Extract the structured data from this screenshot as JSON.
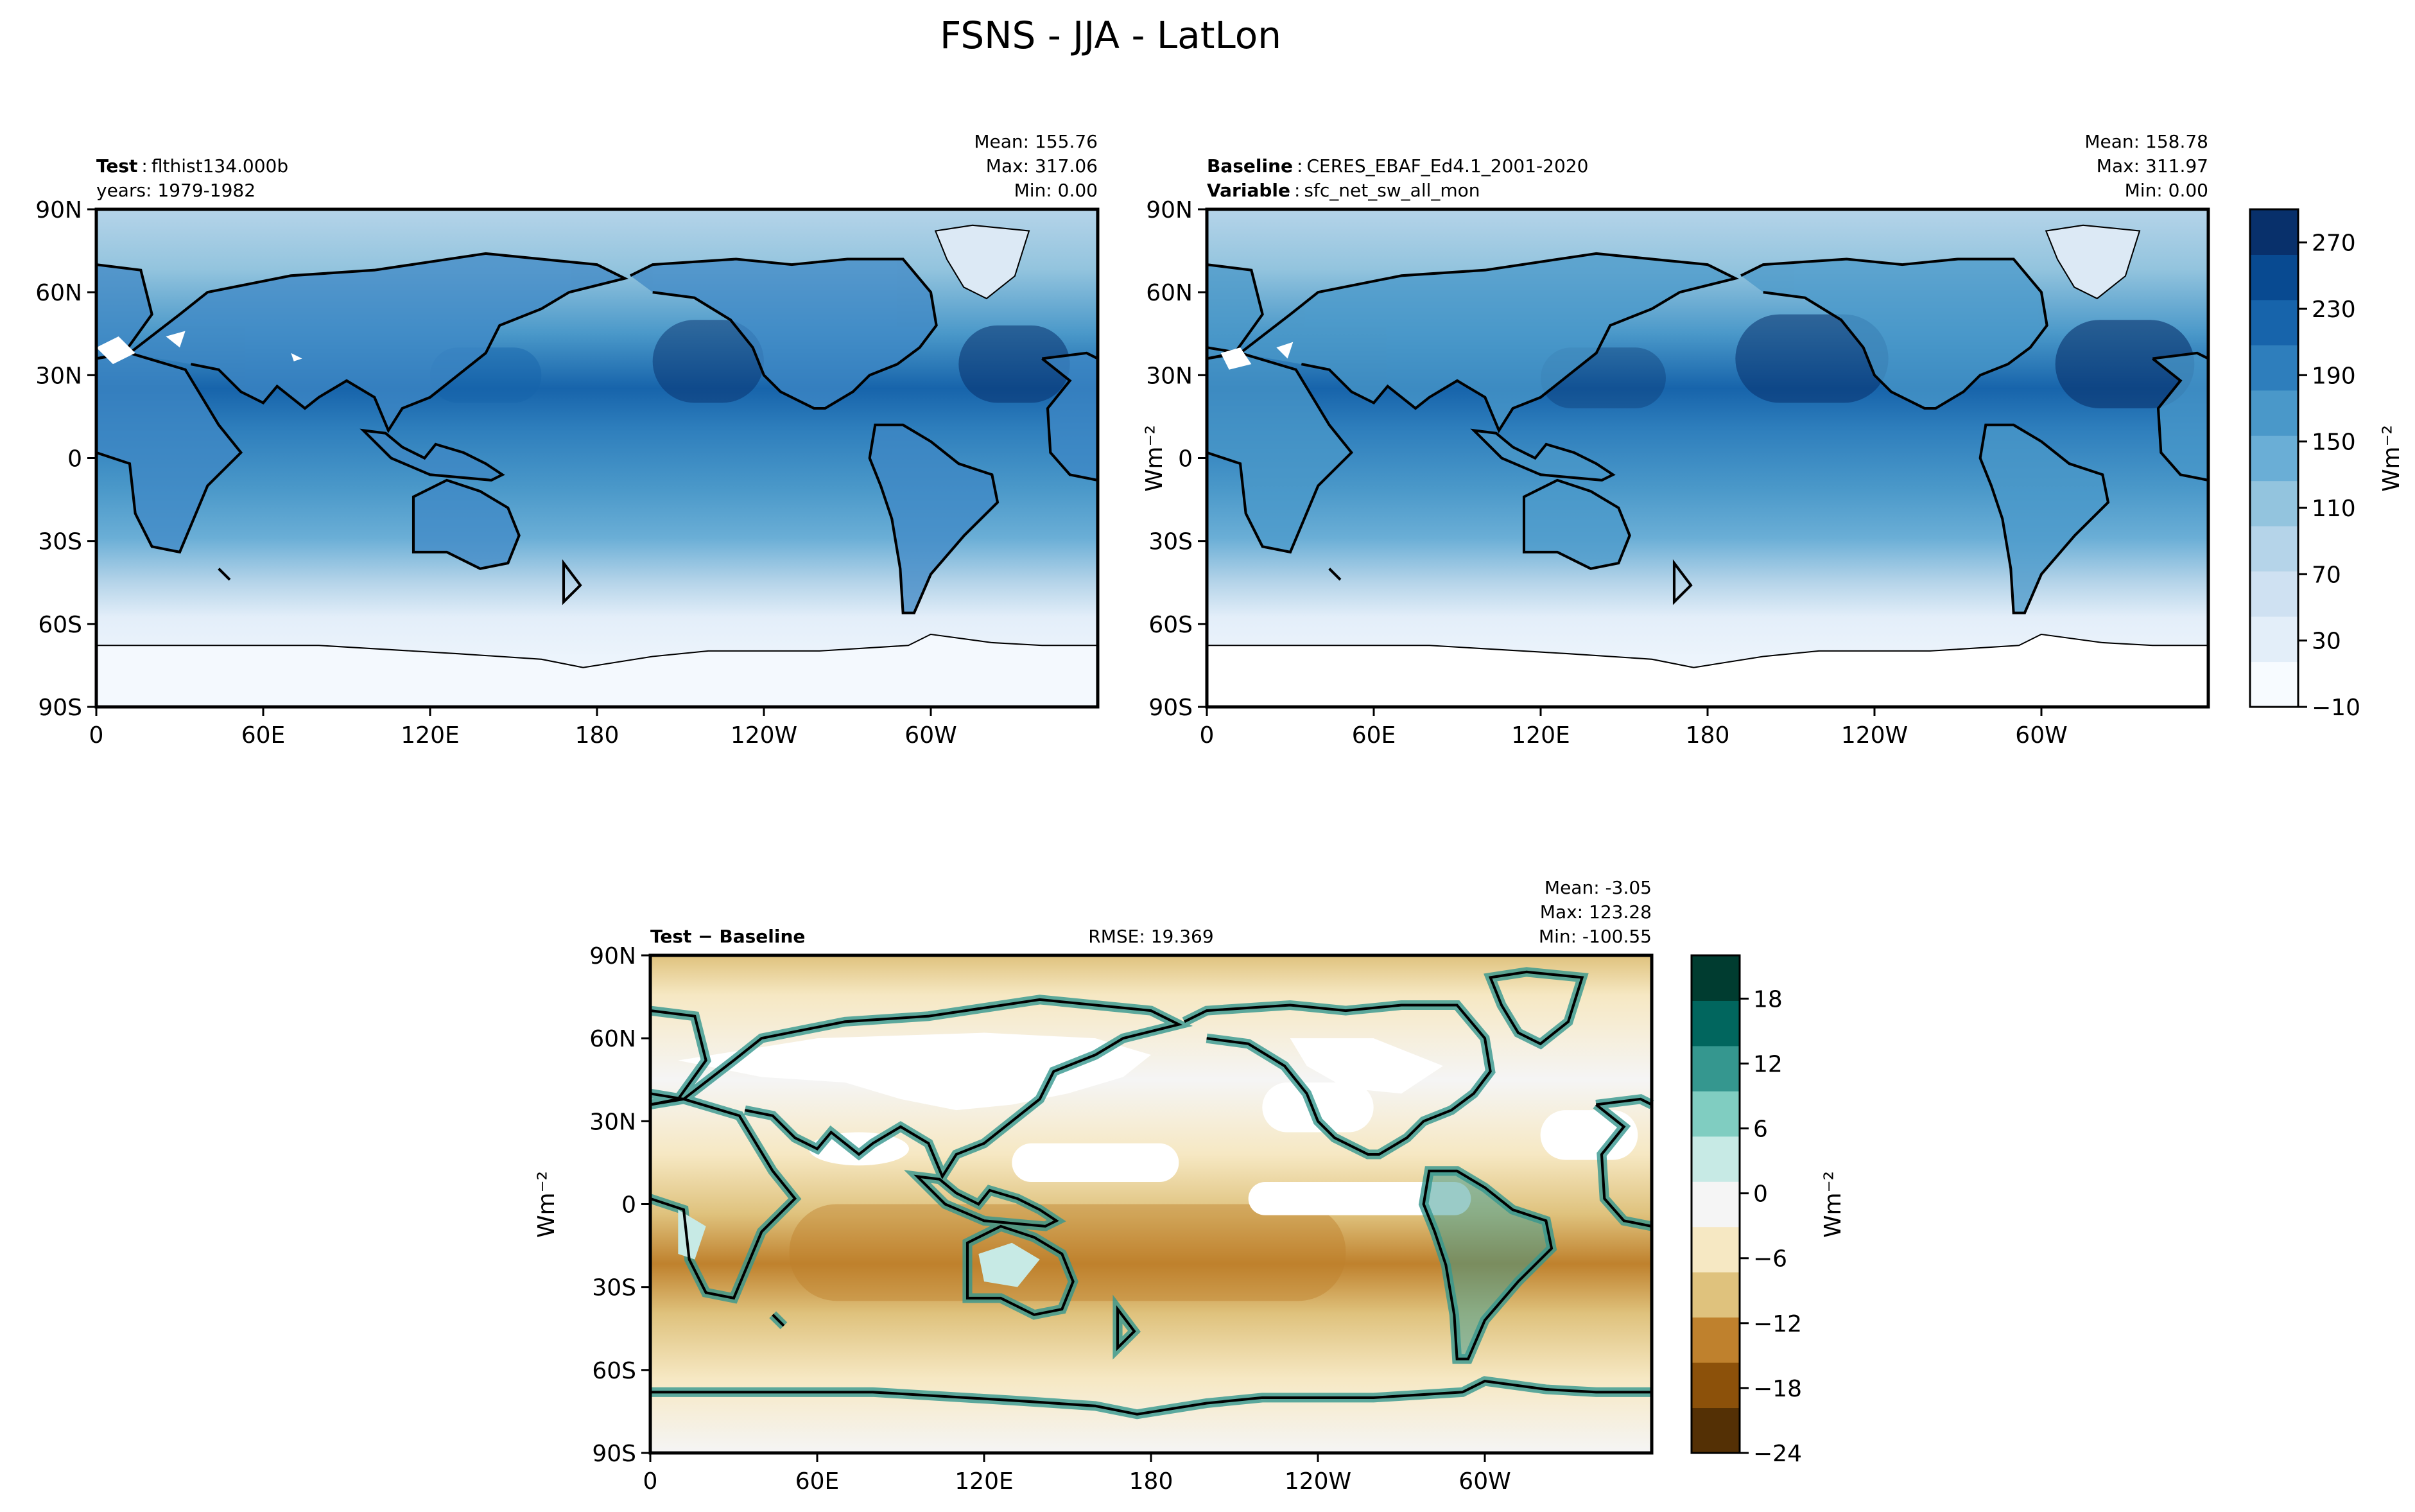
{
  "figure": {
    "suptitle": "FSNS - JJA - LatLon"
  },
  "colors": {
    "blues": [
      "#f7fbff",
      "#e3eef9",
      "#cfe1f2",
      "#b5d4e9",
      "#93c4de",
      "#6aaed6",
      "#4a98c9",
      "#2e7ebc",
      "#1764ab",
      "#084a91",
      "#08306b"
    ],
    "diff": [
      "#543005",
      "#8c510a",
      "#bf812d",
      "#dfc27d",
      "#f6e8c3",
      "#f5f5f5",
      "#c7eae5",
      "#80cdc1",
      "#35978f",
      "#01665e",
      "#003c30"
    ]
  },
  "chart_data": [
    {
      "type": "heatmap",
      "panel": "test",
      "left_title": [
        {
          "bold": "Test",
          "text": "flthist134.000b"
        },
        {
          "bold": "",
          "text": "years: 1979-1982"
        }
      ],
      "stats": [
        "Mean: 155.76",
        "Max: 317.06",
        "Min:  0.00"
      ],
      "x_ticks": [
        "0",
        "60E",
        "120E",
        "180",
        "120W",
        "60W"
      ],
      "x_tick_lon": [
        0,
        60,
        120,
        180,
        240,
        300
      ],
      "y_ticks": [
        "90N",
        "60N",
        "30N",
        "0",
        "30S",
        "60S",
        "90S"
      ],
      "y_tick_lat": [
        90,
        60,
        30,
        0,
        -30,
        -60,
        -90
      ],
      "xlim": [
        0,
        360
      ],
      "ylim": [
        -90,
        90
      ],
      "units_label": "Wm⁻²",
      "coastlines": true
    },
    {
      "type": "heatmap",
      "panel": "reference",
      "left_title": [
        {
          "bold": "Baseline",
          "text": "CERES_EBAF_Ed4.1_2001-2020"
        },
        {
          "bold": "Variable",
          "text": "sfc_net_sw_all_mon"
        }
      ],
      "stats": [
        "Mean: 158.78",
        "Max: 311.97",
        "Min:  0.00"
      ],
      "x_ticks": [
        "0",
        "60E",
        "120E",
        "180",
        "120W",
        "60W"
      ],
      "y_ticks": [
        "90N",
        "60N",
        "30N",
        "0",
        "30S",
        "60S",
        "90S"
      ],
      "xlim": [
        0,
        360
      ],
      "ylim": [
        -90,
        90
      ],
      "colorbar": {
        "ticks": [
          "270",
          "230",
          "190",
          "150",
          "110",
          "70",
          "30",
          "−10"
        ],
        "tick_values": [
          270,
          230,
          190,
          150,
          110,
          70,
          30,
          -10
        ],
        "range": [
          -10,
          290
        ],
        "label": "Wm⁻²"
      }
    },
    {
      "type": "heatmap",
      "panel": "difference",
      "left_title": [
        {
          "bold": "Test − Baseline",
          "text": ""
        }
      ],
      "center_title": "RMSE: 19.369",
      "stats": [
        "Mean: -3.05",
        "Max: 123.28",
        "Min: -100.55"
      ],
      "x_ticks": [
        "0",
        "60E",
        "120E",
        "180",
        "120W",
        "60W"
      ],
      "y_ticks": [
        "90N",
        "60N",
        "30N",
        "0",
        "30S",
        "60S",
        "90S"
      ],
      "xlim": [
        0,
        360
      ],
      "ylim": [
        -90,
        90
      ],
      "units_label": "Wm⁻²",
      "colorbar": {
        "ticks": [
          "18",
          "12",
          "6",
          "0",
          "−6",
          "−12",
          "−18",
          "−24"
        ],
        "tick_values": [
          18,
          12,
          6,
          0,
          -6,
          -12,
          -18,
          -24
        ],
        "range": [
          -24,
          22
        ],
        "label": "Wm⁻²"
      }
    }
  ]
}
